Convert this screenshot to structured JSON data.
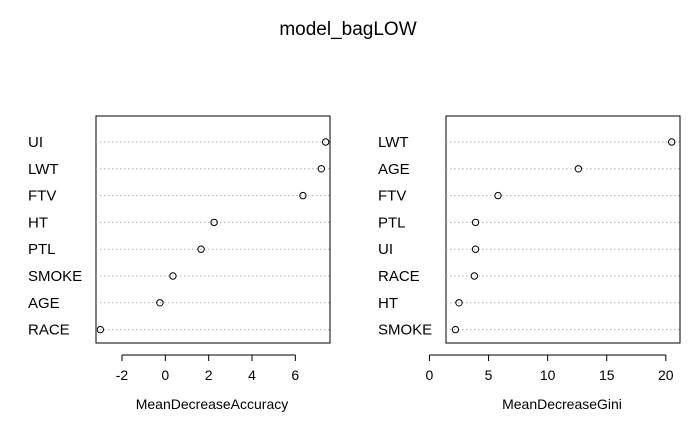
{
  "title": "model_bagLOW",
  "chart_data": [
    {
      "type": "scatter",
      "style": "dotchart",
      "xlabel": "MeanDecreaseAccuracy",
      "xlim": [
        -3.2,
        7.6
      ],
      "xticks": [
        -2,
        0,
        2,
        4,
        6
      ],
      "categories": [
        "UI",
        "LWT",
        "FTV",
        "HT",
        "PTL",
        "SMOKE",
        "AGE",
        "RACE"
      ],
      "values": [
        7.4,
        7.2,
        6.35,
        2.25,
        1.65,
        0.35,
        -0.25,
        -3.0
      ]
    },
    {
      "type": "scatter",
      "style": "dotchart",
      "xlabel": "MeanDecreaseGini",
      "xlim": [
        1.4,
        21.2
      ],
      "xticks": [
        0,
        5,
        10,
        15,
        20
      ],
      "categories": [
        "LWT",
        "AGE",
        "FTV",
        "PTL",
        "UI",
        "RACE",
        "HT",
        "SMOKE"
      ],
      "values": [
        20.5,
        12.6,
        5.8,
        3.9,
        3.9,
        3.8,
        2.5,
        2.2
      ]
    }
  ]
}
